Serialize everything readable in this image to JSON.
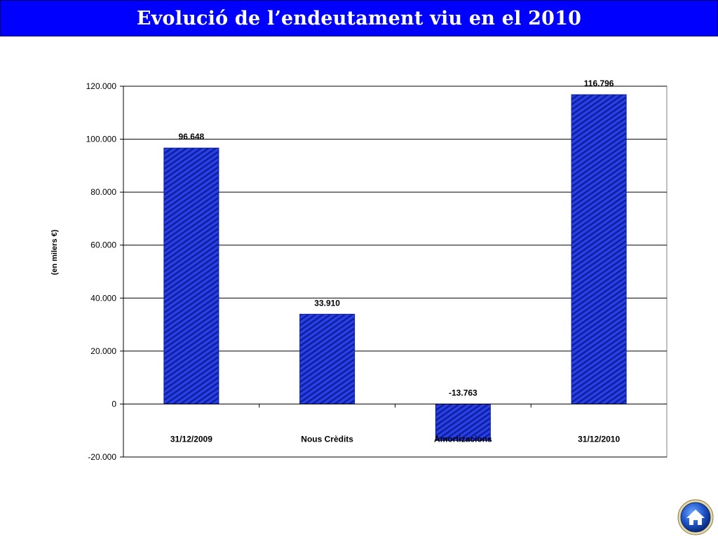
{
  "header": {
    "title": "Evolució de l’endeutament viu en el 2010"
  },
  "colors": {
    "title_bg": "#0000ff",
    "bar_fill": "#2a3fe6",
    "bar_stripe": "#0b1f9a",
    "bar_edge": "#0a1a99"
  },
  "icons": {
    "home": "home-icon"
  },
  "chart_data": {
    "type": "bar",
    "categories": [
      "31/12/2009",
      "Nous Crèdits",
      "Amortizacions",
      "31/12/2010"
    ],
    "values": [
      96648,
      33910,
      -13763,
      116796
    ],
    "data_labels": [
      "96.648",
      "33.910",
      "-13.763",
      "116.796"
    ],
    "title": "",
    "xlabel": "",
    "ylabel": "(en milers €)",
    "ylim": [
      -20000,
      120000
    ],
    "y_ticks": [
      -20000,
      0,
      20000,
      40000,
      60000,
      80000,
      100000,
      120000
    ],
    "y_tick_labels": [
      "-20.000",
      "0",
      "20.000",
      "40.000",
      "60.000",
      "80.000",
      "100.000",
      "120.000"
    ],
    "grid": true,
    "legend": "none"
  }
}
